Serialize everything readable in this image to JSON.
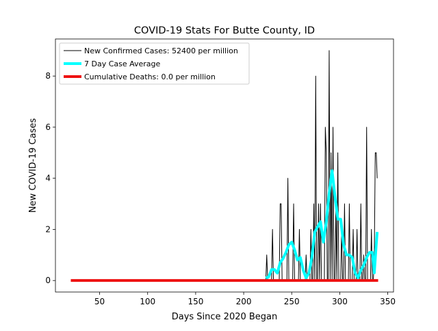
{
  "chart_data": {
    "type": "line",
    "title": "COVID-19 Stats For Butte County, ID",
    "xlabel": "Days Since 2020 Began",
    "ylabel": "New COVID-19 Cases",
    "xlim": [
      4,
      356
    ],
    "ylim": [
      -0.45,
      9.45
    ],
    "xticks": [
      50,
      100,
      150,
      200,
      250,
      300,
      350
    ],
    "yticks": [
      0,
      2,
      4,
      6,
      8
    ],
    "legend": "upper left",
    "series": [
      {
        "name": "New Confirmed Cases: 52400 per million",
        "color": "#000000",
        "width": 1,
        "x": [
          223,
          224,
          225,
          229,
          230,
          231,
          237,
          238,
          239,
          240,
          245,
          246,
          247,
          251,
          252,
          253,
          257,
          258,
          259,
          264,
          265,
          266,
          269,
          270,
          271,
          272,
          273,
          274,
          275,
          276,
          277,
          278,
          279,
          280,
          281,
          284,
          285,
          286,
          287,
          288,
          289,
          290,
          291,
          292,
          293,
          294,
          295,
          296,
          297,
          298,
          299,
          301,
          302,
          303,
          304,
          305,
          306,
          309,
          310,
          311,
          313,
          314,
          315,
          317,
          318,
          319,
          321,
          322,
          323,
          324,
          325,
          326,
          327,
          328,
          329,
          332,
          333,
          334,
          335,
          336,
          337,
          338,
          339
        ],
        "values": [
          0,
          1,
          0,
          0,
          2,
          0,
          0,
          3,
          3,
          0,
          0,
          4,
          0,
          0,
          3,
          0,
          0,
          2,
          0,
          0,
          1,
          0,
          0,
          2,
          0,
          0,
          3,
          0,
          8,
          0,
          0,
          3,
          0,
          3,
          0,
          0,
          6,
          5,
          0,
          0,
          9,
          0,
          5,
          0,
          6,
          0,
          0,
          3,
          0,
          5,
          0,
          0,
          2,
          0,
          0,
          3,
          0,
          0,
          3,
          0,
          0,
          2,
          0,
          0,
          2,
          0,
          0,
          3,
          0,
          0,
          1,
          0,
          0,
          6,
          0,
          0,
          2,
          0,
          0,
          1,
          5,
          5,
          4
        ]
      },
      {
        "name": "7 Day Case Average",
        "color": "#00ffff",
        "width": 4,
        "x": [
          223,
          226,
          229,
          232,
          235,
          238,
          241,
          244,
          247,
          250,
          253,
          256,
          259,
          262,
          265,
          268,
          271,
          274,
          277,
          280,
          283,
          286,
          289,
          292,
          295,
          298,
          301,
          304,
          307,
          310,
          313,
          316,
          319,
          322,
          325,
          328,
          331,
          334,
          336,
          338,
          339
        ],
        "values": [
          0.1,
          0.14,
          0.43,
          0.43,
          0.29,
          0.7,
          0.86,
          1.1,
          1.4,
          1.5,
          1.2,
          0.8,
          0.9,
          0.4,
          0.1,
          0.3,
          0.9,
          1.9,
          2.1,
          2.3,
          1.5,
          2.3,
          3.4,
          4.3,
          3.3,
          2.4,
          2.4,
          1.4,
          1.0,
          1.0,
          0.9,
          0.3,
          0.1,
          0.4,
          0.6,
          0.9,
          1.1,
          1.1,
          0.3,
          1.4,
          1.9
        ]
      },
      {
        "name": "Cumulative Deaths: 0.0 per million",
        "color": "#ee1111",
        "width": 4,
        "x": [
          20,
          340
        ],
        "values": [
          0,
          0
        ]
      }
    ]
  }
}
